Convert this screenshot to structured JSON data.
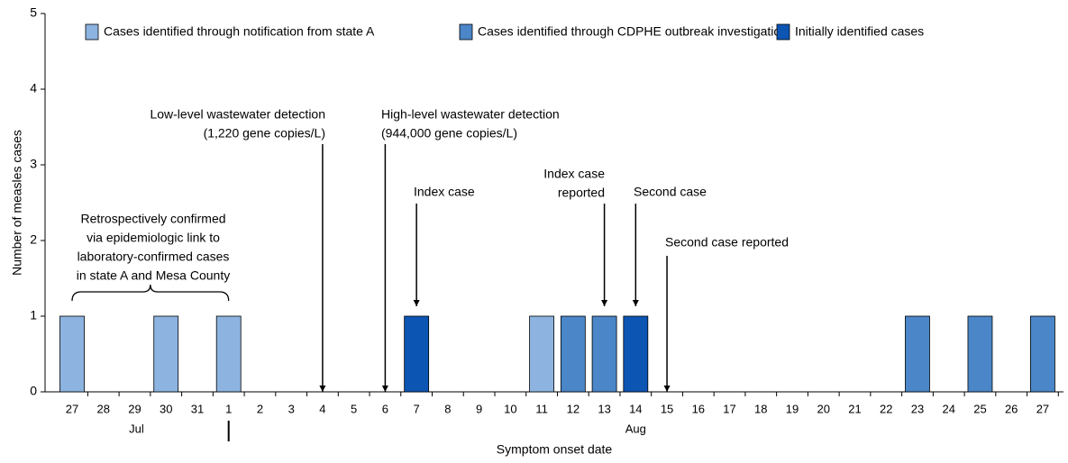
{
  "chart_data": {
    "type": "bar",
    "stacked": true,
    "ylabel": "Number of measles cases",
    "xlabel": "Symptom onset date",
    "categories": [
      "27",
      "28",
      "29",
      "30",
      "31",
      "1",
      "2",
      "3",
      "4",
      "5",
      "6",
      "7",
      "8",
      "9",
      "10",
      "11",
      "12",
      "13",
      "14",
      "15",
      "16",
      "17",
      "18",
      "19",
      "20",
      "21",
      "22",
      "23",
      "24",
      "25",
      "26",
      "27"
    ],
    "month_labels": [
      "Jul",
      "Aug"
    ],
    "ylim": [
      0,
      5
    ],
    "yticks": [
      0,
      1,
      2,
      3,
      4,
      5
    ],
    "grid": false,
    "legend": "top",
    "series": [
      {
        "name": "Cases identified through notification from state A",
        "color": "#8db3e0",
        "values": [
          1,
          0,
          0,
          1,
          0,
          1,
          0,
          0,
          0,
          0,
          0,
          0,
          0,
          0,
          0,
          1,
          0,
          0,
          0,
          0,
          0,
          0,
          0,
          0,
          0,
          0,
          0,
          0,
          0,
          0,
          0,
          0
        ]
      },
      {
        "name": "Cases identified through CDPHE outbreak investigation",
        "color": "#4a86c8",
        "values": [
          0,
          0,
          0,
          0,
          0,
          0,
          0,
          0,
          0,
          0,
          0,
          0,
          0,
          0,
          0,
          0,
          1,
          1,
          0,
          0,
          0,
          0,
          0,
          0,
          0,
          0,
          0,
          1,
          0,
          1,
          0,
          1
        ]
      },
      {
        "name": "Initially identified cases",
        "color": "#0d55b3",
        "values": [
          0,
          0,
          0,
          0,
          0,
          0,
          0,
          0,
          0,
          0,
          0,
          1,
          0,
          0,
          0,
          0,
          0,
          0,
          1,
          0,
          0,
          0,
          0,
          0,
          0,
          0,
          0,
          0,
          0,
          0,
          0,
          0
        ]
      }
    ],
    "annotations": [
      {
        "lines": [
          "Low-level wastewater detection",
          "(1,220 gene copies/L)"
        ]
      },
      {
        "lines": [
          "High-level wastewater detection",
          "(944,000 gene copies/L)"
        ]
      },
      {
        "lines": [
          "Index case"
        ]
      },
      {
        "lines": [
          "Index case",
          "reported"
        ]
      },
      {
        "lines": [
          "Second case"
        ]
      },
      {
        "lines": [
          "Second case reported"
        ]
      },
      {
        "lines": [
          "Retrospectively confirmed",
          "via epidemiologic link to",
          "laboratory-confirmed cases",
          "in state A and Mesa County"
        ]
      }
    ]
  }
}
